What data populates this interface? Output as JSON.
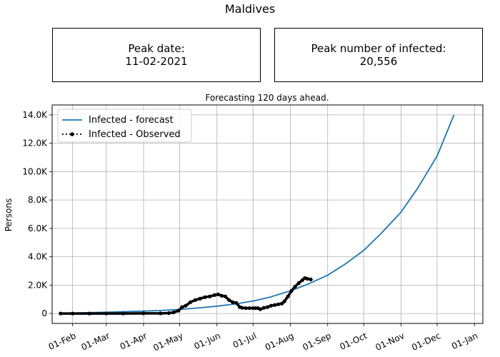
{
  "page": {
    "title": "Maldives",
    "peak_date_label": "Peak date:",
    "peak_date_value": "11-02-2021",
    "peak_count_label": "Peak number of infected:",
    "peak_count_value": "20,556"
  },
  "chart_data": {
    "type": "line",
    "title": "Forecasting 120 days ahead.",
    "xlabel": "",
    "ylabel": "Persons",
    "x_domain": [
      "2021-01-15",
      "2022-01-08"
    ],
    "ylim": [
      -700,
      14700
    ],
    "y_ticks": [
      {
        "value": 0,
        "label": "0"
      },
      {
        "value": 2000,
        "label": "2.0K"
      },
      {
        "value": 4000,
        "label": "4.0K"
      },
      {
        "value": 6000,
        "label": "6.0K"
      },
      {
        "value": 8000,
        "label": "8.0K"
      },
      {
        "value": 10000,
        "label": "10.0K"
      },
      {
        "value": 12000,
        "label": "12.0K"
      },
      {
        "value": 14000,
        "label": "14.0K"
      }
    ],
    "x_ticks": [
      {
        "value": "2021-02-01",
        "label": "01-Feb"
      },
      {
        "value": "2021-03-01",
        "label": "01-Mar"
      },
      {
        "value": "2021-04-01",
        "label": "01-Apr"
      },
      {
        "value": "2021-05-01",
        "label": "01-May"
      },
      {
        "value": "2021-06-01",
        "label": "01-Jun"
      },
      {
        "value": "2021-07-01",
        "label": "01-Jul"
      },
      {
        "value": "2021-08-01",
        "label": "01-Aug"
      },
      {
        "value": "2021-09-01",
        "label": "01-Sep"
      },
      {
        "value": "2021-10-01",
        "label": "01-Oct"
      },
      {
        "value": "2021-11-01",
        "label": "01-Nov"
      },
      {
        "value": "2021-12-01",
        "label": "01-Dec"
      },
      {
        "value": "2022-01-01",
        "label": "01-Jan"
      }
    ],
    "grid": true,
    "legend_position": "top-left",
    "series": [
      {
        "name": "Infected - forecast",
        "style": "solid",
        "color": "#1f77b4",
        "x": [
          "2021-01-22",
          "2021-02-01",
          "2021-03-01",
          "2021-04-01",
          "2021-04-15",
          "2021-05-01",
          "2021-05-15",
          "2021-06-01",
          "2021-06-15",
          "2021-07-01",
          "2021-07-15",
          "2021-08-01",
          "2021-08-15",
          "2021-09-01",
          "2021-09-15",
          "2021-10-01",
          "2021-10-15",
          "2021-11-01",
          "2021-11-15",
          "2021-12-01",
          "2021-12-15"
        ],
        "y": [
          20,
          35,
          90,
          170,
          210,
          290,
          380,
          520,
          660,
          880,
          1150,
          1600,
          2050,
          2700,
          3450,
          4450,
          5600,
          7150,
          8850,
          11100,
          14000
        ]
      },
      {
        "name": "Infected - Observed",
        "style": "dotted-markers",
        "color": "#000000",
        "x": [
          "2021-01-22",
          "2021-02-01",
          "2021-02-15",
          "2021-03-01",
          "2021-03-15",
          "2021-04-01",
          "2021-04-15",
          "2021-04-22",
          "2021-04-26",
          "2021-04-30",
          "2021-05-03",
          "2021-05-06",
          "2021-05-10",
          "2021-05-14",
          "2021-05-18",
          "2021-05-22",
          "2021-05-26",
          "2021-05-30",
          "2021-06-02",
          "2021-06-05",
          "2021-06-08",
          "2021-06-11",
          "2021-06-14",
          "2021-06-17",
          "2021-06-20",
          "2021-06-22",
          "2021-06-25",
          "2021-06-28",
          "2021-07-01",
          "2021-07-03",
          "2021-07-05",
          "2021-07-07",
          "2021-07-10",
          "2021-07-13",
          "2021-07-16",
          "2021-07-19",
          "2021-07-22",
          "2021-07-25",
          "2021-07-27",
          "2021-07-30",
          "2021-08-02",
          "2021-08-05",
          "2021-08-08",
          "2021-08-11",
          "2021-08-13",
          "2021-08-15",
          "2021-08-18"
        ],
        "y": [
          0,
          0,
          0,
          0,
          0,
          10,
          10,
          30,
          80,
          200,
          450,
          550,
          800,
          950,
          1050,
          1150,
          1200,
          1300,
          1350,
          1250,
          1200,
          950,
          800,
          750,
          450,
          400,
          380,
          380,
          380,
          380,
          380,
          300,
          400,
          450,
          550,
          600,
          650,
          700,
          850,
          1200,
          1600,
          1900,
          2150,
          2350,
          2500,
          2450,
          2400
        ]
      }
    ]
  }
}
